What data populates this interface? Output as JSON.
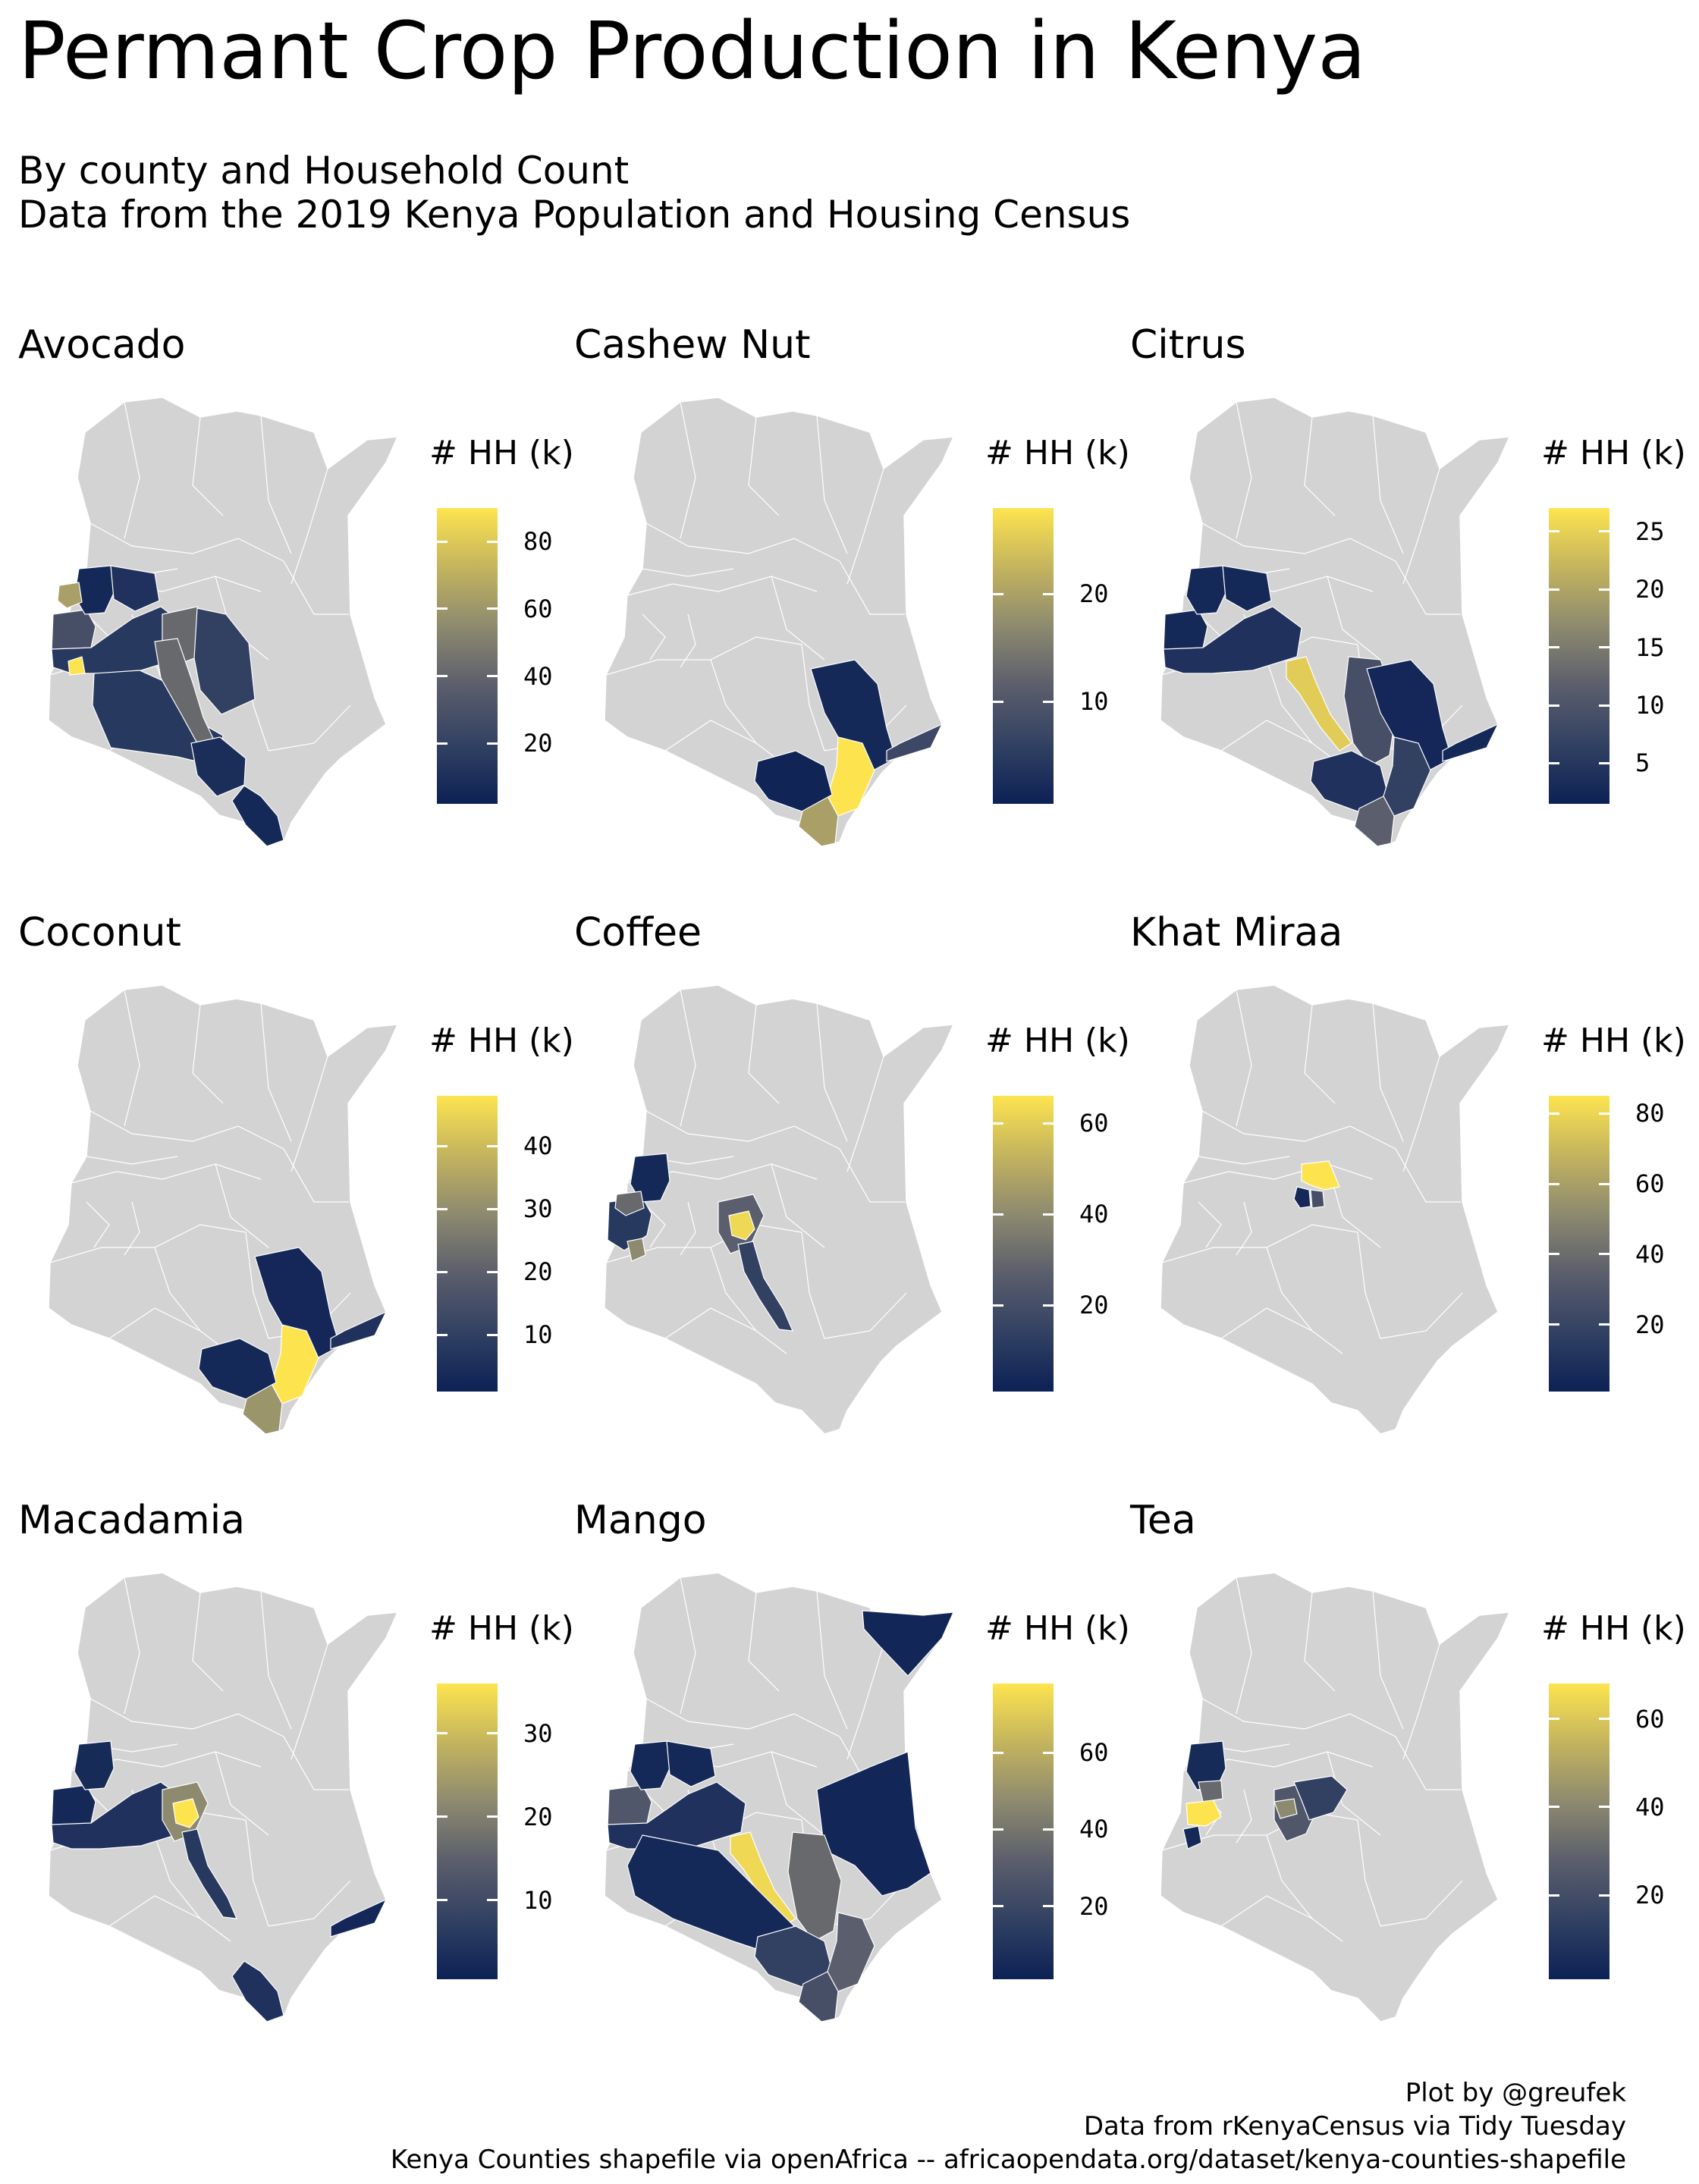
{
  "title": "Permant Crop Production in Kenya",
  "subtitle": [
    "By county and Household Count",
    "Data from the 2019 Kenya Population and Housing Census"
  ],
  "caption": [
    "Plot by @greufek",
    "Data from rKenyaCensus via Tidy Tuesday",
    "Kenya Counties shapefile via openAfrica -- africaopendata.org/dataset/kenya-counties-shapefile"
  ],
  "colors": {
    "no_data": "#d3d3d3",
    "scale_low": "#0c2155",
    "scale_mid": "#7a7a74",
    "scale_high": "#fde44f",
    "border": "#ffffff"
  },
  "legend_title": "# HH (k)",
  "panels": [
    {
      "crop": "Avocado",
      "legend": {
        "ticks": [
          20,
          40,
          60,
          80
        ],
        "range": [
          2,
          90
        ]
      },
      "regions": [
        {
          "name": "west-pocket",
          "level": 0.3
        },
        {
          "name": "west-north",
          "level": 0.05
        },
        {
          "name": "turkana-south",
          "level": 0.1
        },
        {
          "name": "central-north",
          "level": 0.15
        },
        {
          "name": "central-east",
          "level": 0.45
        },
        {
          "name": "east-mid",
          "level": 0.2
        },
        {
          "name": "south-central",
          "level": 0.15
        },
        {
          "name": "south-corridor",
          "level": 0.45
        },
        {
          "name": "coast-north",
          "level": 0.08
        },
        {
          "name": "coast-south",
          "level": 0.05
        },
        {
          "name": "yellow-west",
          "level": 1.0
        },
        {
          "name": "tan-northwest",
          "level": 0.7
        }
      ]
    },
    {
      "crop": "Cashew Nut",
      "legend": {
        "ticks": [
          10,
          20
        ],
        "range": [
          0.5,
          28
        ]
      },
      "regions": [
        {
          "name": "tana-river",
          "level": 0.05
        },
        {
          "name": "lamu",
          "level": 0.25
        },
        {
          "name": "kilifi",
          "level": 1.0
        },
        {
          "name": "kwale",
          "level": 0.7
        },
        {
          "name": "taita-taveta",
          "level": 0.02
        }
      ]
    },
    {
      "crop": "Citrus",
      "legend": {
        "ticks": [
          5,
          10,
          15,
          20,
          25
        ],
        "range": [
          1.5,
          27
        ]
      },
      "regions": [
        {
          "name": "west-pocket",
          "level": 0.05
        },
        {
          "name": "west-north",
          "level": 0.05
        },
        {
          "name": "turkana-south",
          "level": 0.05
        },
        {
          "name": "central-north",
          "level": 0.1
        },
        {
          "name": "kitui",
          "level": 0.3
        },
        {
          "name": "tana-river",
          "level": 0.04
        },
        {
          "name": "lamu",
          "level": 0.05
        },
        {
          "name": "makueni",
          "level": 0.9
        },
        {
          "name": "taita-taveta",
          "level": 0.1
        },
        {
          "name": "kilifi",
          "level": 0.2
        },
        {
          "name": "kwale",
          "level": 0.4
        }
      ]
    },
    {
      "crop": "Coconut",
      "legend": {
        "ticks": [
          10,
          20,
          30,
          40
        ],
        "range": [
          1,
          48
        ]
      },
      "regions": [
        {
          "name": "tana-river",
          "level": 0.04
        },
        {
          "name": "lamu",
          "level": 0.1
        },
        {
          "name": "kilifi",
          "level": 1.0
        },
        {
          "name": "kwale",
          "level": 0.65
        },
        {
          "name": "taita-taveta",
          "level": 0.05
        }
      ]
    },
    {
      "crop": "Coffee",
      "legend": {
        "ticks": [
          20,
          40,
          60
        ],
        "range": [
          1,
          66
        ]
      },
      "regions": [
        {
          "name": "west-pocket",
          "level": 0.15
        },
        {
          "name": "west-north",
          "level": 0.05
        },
        {
          "name": "bungoma",
          "level": 0.45
        },
        {
          "name": "kisii",
          "level": 0.6
        },
        {
          "name": "central-east",
          "level": 0.4
        },
        {
          "name": "kirinyaga",
          "level": 0.95
        },
        {
          "name": "makueni-strip",
          "level": 0.2
        }
      ]
    },
    {
      "crop": "Khat Miraa",
      "legend": {
        "ticks": [
          20,
          40,
          60,
          80
        ],
        "range": [
          1,
          85
        ]
      },
      "regions": [
        {
          "name": "meru",
          "level": 1.0
        },
        {
          "name": "embu",
          "level": 0.05
        },
        {
          "name": "tharaka",
          "level": 0.3
        }
      ]
    },
    {
      "crop": "Macadamia",
      "legend": {
        "ticks": [
          10,
          20,
          30
        ],
        "range": [
          0.5,
          36
        ]
      },
      "regions": [
        {
          "name": "west-pocket",
          "level": 0.05
        },
        {
          "name": "west-north",
          "level": 0.06
        },
        {
          "name": "central-north",
          "level": 0.1
        },
        {
          "name": "central-east",
          "level": 0.6
        },
        {
          "name": "kirinyaga",
          "level": 1.0
        },
        {
          "name": "makueni-strip",
          "level": 0.15
        },
        {
          "name": "coast-south",
          "level": 0.1
        },
        {
          "name": "lamu",
          "level": 0.04
        }
      ]
    },
    {
      "crop": "Mango",
      "legend": {
        "ticks": [
          20,
          40,
          60
        ],
        "range": [
          1,
          78
        ]
      },
      "regions": [
        {
          "name": "mandera",
          "level": 0.03
        },
        {
          "name": "west-pocket",
          "level": 0.35
        },
        {
          "name": "west-north",
          "level": 0.05
        },
        {
          "name": "turkana-south",
          "level": 0.05
        },
        {
          "name": "central-north",
          "level": 0.1
        },
        {
          "name": "garissa",
          "level": 0.03
        },
        {
          "name": "kitui",
          "level": 0.45
        },
        {
          "name": "makueni",
          "level": 0.95
        },
        {
          "name": "south-broad",
          "level": 0.05
        },
        {
          "name": "taita-taveta",
          "level": 0.2
        },
        {
          "name": "kilifi",
          "level": 0.4
        },
        {
          "name": "kwale",
          "level": 0.3
        }
      ]
    },
    {
      "crop": "Tea",
      "legend": {
        "ticks": [
          20,
          40,
          60
        ],
        "range": [
          1,
          68
        ]
      },
      "regions": [
        {
          "name": "west-north",
          "level": 0.06
        },
        {
          "name": "nandi",
          "level": 0.45
        },
        {
          "name": "kericho",
          "level": 1.0
        },
        {
          "name": "kisii",
          "level": 0.05
        },
        {
          "name": "central-east",
          "level": 0.35
        },
        {
          "name": "nyeri",
          "level": 0.6
        },
        {
          "name": "meru-east",
          "level": 0.2
        }
      ]
    }
  ]
}
